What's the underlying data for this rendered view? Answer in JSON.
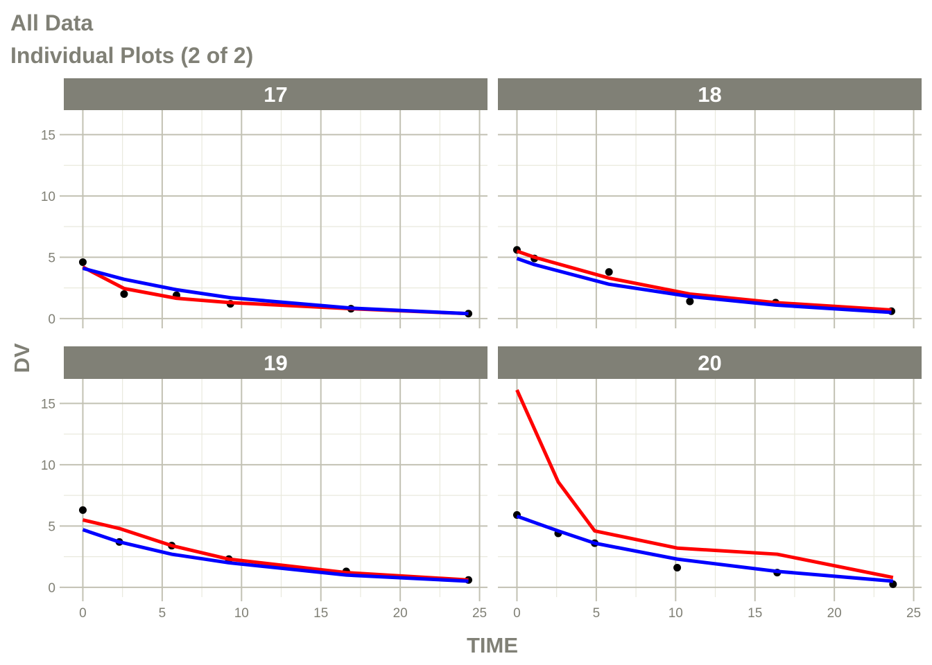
{
  "chart_data": {
    "type": "line",
    "title": "All Data",
    "subtitle": "Individual Plots (2 of 2)",
    "xlabel": "TIME",
    "ylabel": "DV",
    "xlim": [
      -1.2,
      25.5
    ],
    "ylim": [
      -0.8,
      17.0
    ],
    "xticks": [
      0,
      5,
      10,
      15,
      20,
      25
    ],
    "yticks": [
      0,
      5,
      10,
      15
    ],
    "grid": true,
    "colors": {
      "observed": "#000000",
      "red_line": "#ff0000",
      "blue_line": "#0000ff",
      "strip": "#808076",
      "grid_major": "#c2c1b3",
      "grid_minor": "#e9e9dd",
      "axis_text": "#808076"
    },
    "panels": [
      {
        "label": "17",
        "observed": [
          [
            0,
            4.6
          ],
          [
            2.6,
            2.0
          ],
          [
            5.9,
            1.9
          ],
          [
            9.3,
            1.2
          ],
          [
            16.9,
            0.8
          ],
          [
            24.3,
            0.4
          ]
        ],
        "red_line": [
          [
            0,
            4.2
          ],
          [
            2.6,
            2.45
          ],
          [
            5.9,
            1.65
          ],
          [
            9.3,
            1.3
          ],
          [
            16.9,
            0.8
          ],
          [
            24.3,
            0.4
          ]
        ],
        "blue_line": [
          [
            0,
            4.1
          ],
          [
            2.6,
            3.2
          ],
          [
            5.9,
            2.35
          ],
          [
            9.3,
            1.7
          ],
          [
            16.9,
            0.85
          ],
          [
            24.3,
            0.4
          ]
        ]
      },
      {
        "label": "18",
        "observed": [
          [
            0,
            5.6
          ],
          [
            1.1,
            4.9
          ],
          [
            5.8,
            3.8
          ],
          [
            10.9,
            1.4
          ],
          [
            16.3,
            1.3
          ],
          [
            23.6,
            0.6
          ]
        ],
        "red_line": [
          [
            0,
            5.5
          ],
          [
            1.1,
            5.0
          ],
          [
            5.8,
            3.3
          ],
          [
            10.9,
            2.0
          ],
          [
            16.3,
            1.3
          ],
          [
            23.6,
            0.7
          ]
        ],
        "blue_line": [
          [
            0,
            4.9
          ],
          [
            1.1,
            4.4
          ],
          [
            5.8,
            2.8
          ],
          [
            10.9,
            1.8
          ],
          [
            16.3,
            1.1
          ],
          [
            23.6,
            0.5
          ]
        ]
      },
      {
        "label": "19",
        "observed": [
          [
            0,
            6.3
          ],
          [
            2.3,
            3.7
          ],
          [
            5.6,
            3.4
          ],
          [
            9.2,
            2.3
          ],
          [
            16.6,
            1.3
          ],
          [
            24.3,
            0.6
          ]
        ],
        "red_line": [
          [
            0,
            5.5
          ],
          [
            2.3,
            4.8
          ],
          [
            5.6,
            3.4
          ],
          [
            9.2,
            2.3
          ],
          [
            16.6,
            1.2
          ],
          [
            24.3,
            0.6
          ]
        ],
        "blue_line": [
          [
            0,
            4.7
          ],
          [
            2.3,
            3.7
          ],
          [
            5.6,
            2.7
          ],
          [
            9.2,
            2.0
          ],
          [
            16.6,
            1.0
          ],
          [
            24.3,
            0.5
          ]
        ]
      },
      {
        "label": "20",
        "observed": [
          [
            0,
            5.9
          ],
          [
            2.6,
            4.4
          ],
          [
            4.9,
            3.6
          ],
          [
            10.1,
            1.6
          ],
          [
            16.4,
            1.2
          ],
          [
            23.7,
            0.25
          ]
        ],
        "red_line": [
          [
            0,
            16.1
          ],
          [
            2.6,
            8.6
          ],
          [
            4.9,
            4.6
          ],
          [
            10.1,
            3.2
          ],
          [
            16.4,
            2.7
          ],
          [
            23.7,
            0.8
          ]
        ],
        "blue_line": [
          [
            0,
            5.8
          ],
          [
            2.6,
            4.6
          ],
          [
            4.9,
            3.6
          ],
          [
            10.1,
            2.3
          ],
          [
            16.4,
            1.3
          ],
          [
            23.7,
            0.5
          ]
        ]
      }
    ]
  }
}
